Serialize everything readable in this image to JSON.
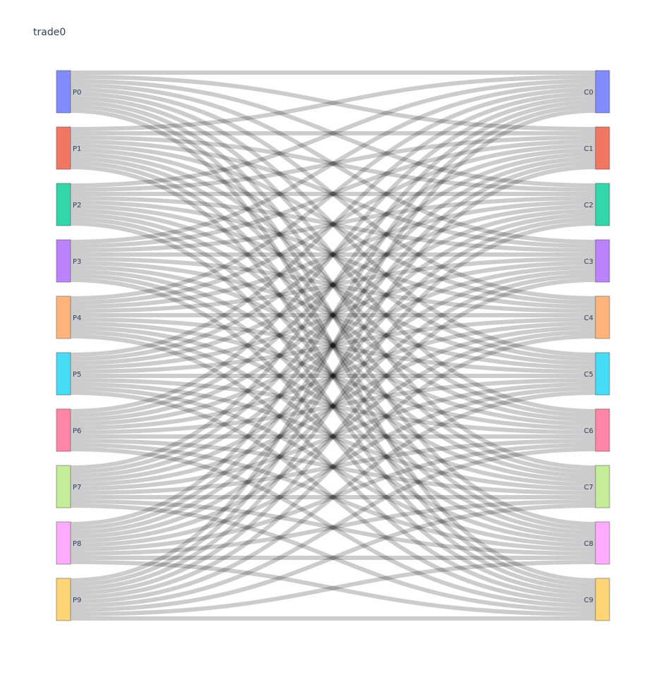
{
  "chart_data": {
    "type": "sankey",
    "title": "trade0",
    "sources": [
      "P0",
      "P1",
      "P2",
      "P3",
      "P4",
      "P5",
      "P6",
      "P7",
      "P8",
      "P9"
    ],
    "targets": [
      "C0",
      "C1",
      "C2",
      "C3",
      "C4",
      "C5",
      "C6",
      "C7",
      "C8",
      "C9"
    ],
    "node_colors": [
      "#636efa",
      "#EF553B",
      "#00cc96",
      "#ab63fa",
      "#FFA15A",
      "#19d3f3",
      "#FF6692",
      "#B6E880",
      "#FF97FF",
      "#FECB52"
    ],
    "link_color": "rgba(0,0,0,0.2)",
    "links_note": "every source flows to every target with equal value",
    "link_value": 1
  }
}
